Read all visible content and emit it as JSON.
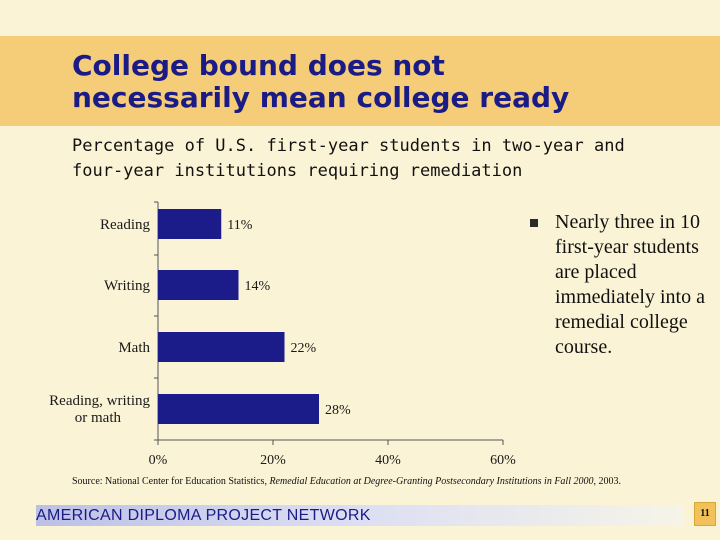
{
  "title": "College bound does not\nnecessarily mean college ready",
  "subtitle": "Percentage of U.S. first-year students in two-year and\nfour-year institutions requiring remediation",
  "chart_data": {
    "type": "bar",
    "orientation": "horizontal",
    "categories": [
      "Reading",
      "Writing",
      "Math",
      "Reading, writing or math"
    ],
    "values": [
      11,
      14,
      22,
      28
    ],
    "value_labels": [
      "11%",
      "14%",
      "22%",
      "28%"
    ],
    "xlim": [
      0,
      60
    ],
    "x_ticks": [
      "0%",
      "20%",
      "40%",
      "60%"
    ],
    "grid": false,
    "bar_color": "#1b1b8a"
  },
  "bullet": {
    "text": "Nearly three in 10 first-year students are placed immediately into a remedial college course."
  },
  "source": {
    "prefix": "Source: National Center for Education Statistics,",
    "italic": "Remedial Education at Degree-Granting Postsecondary Institutions in Fall 2000",
    "suffix": ", 2003."
  },
  "footer": {
    "network": "AMERICAN DIPLOMA PROJECT NETWORK",
    "page_number": "11"
  }
}
